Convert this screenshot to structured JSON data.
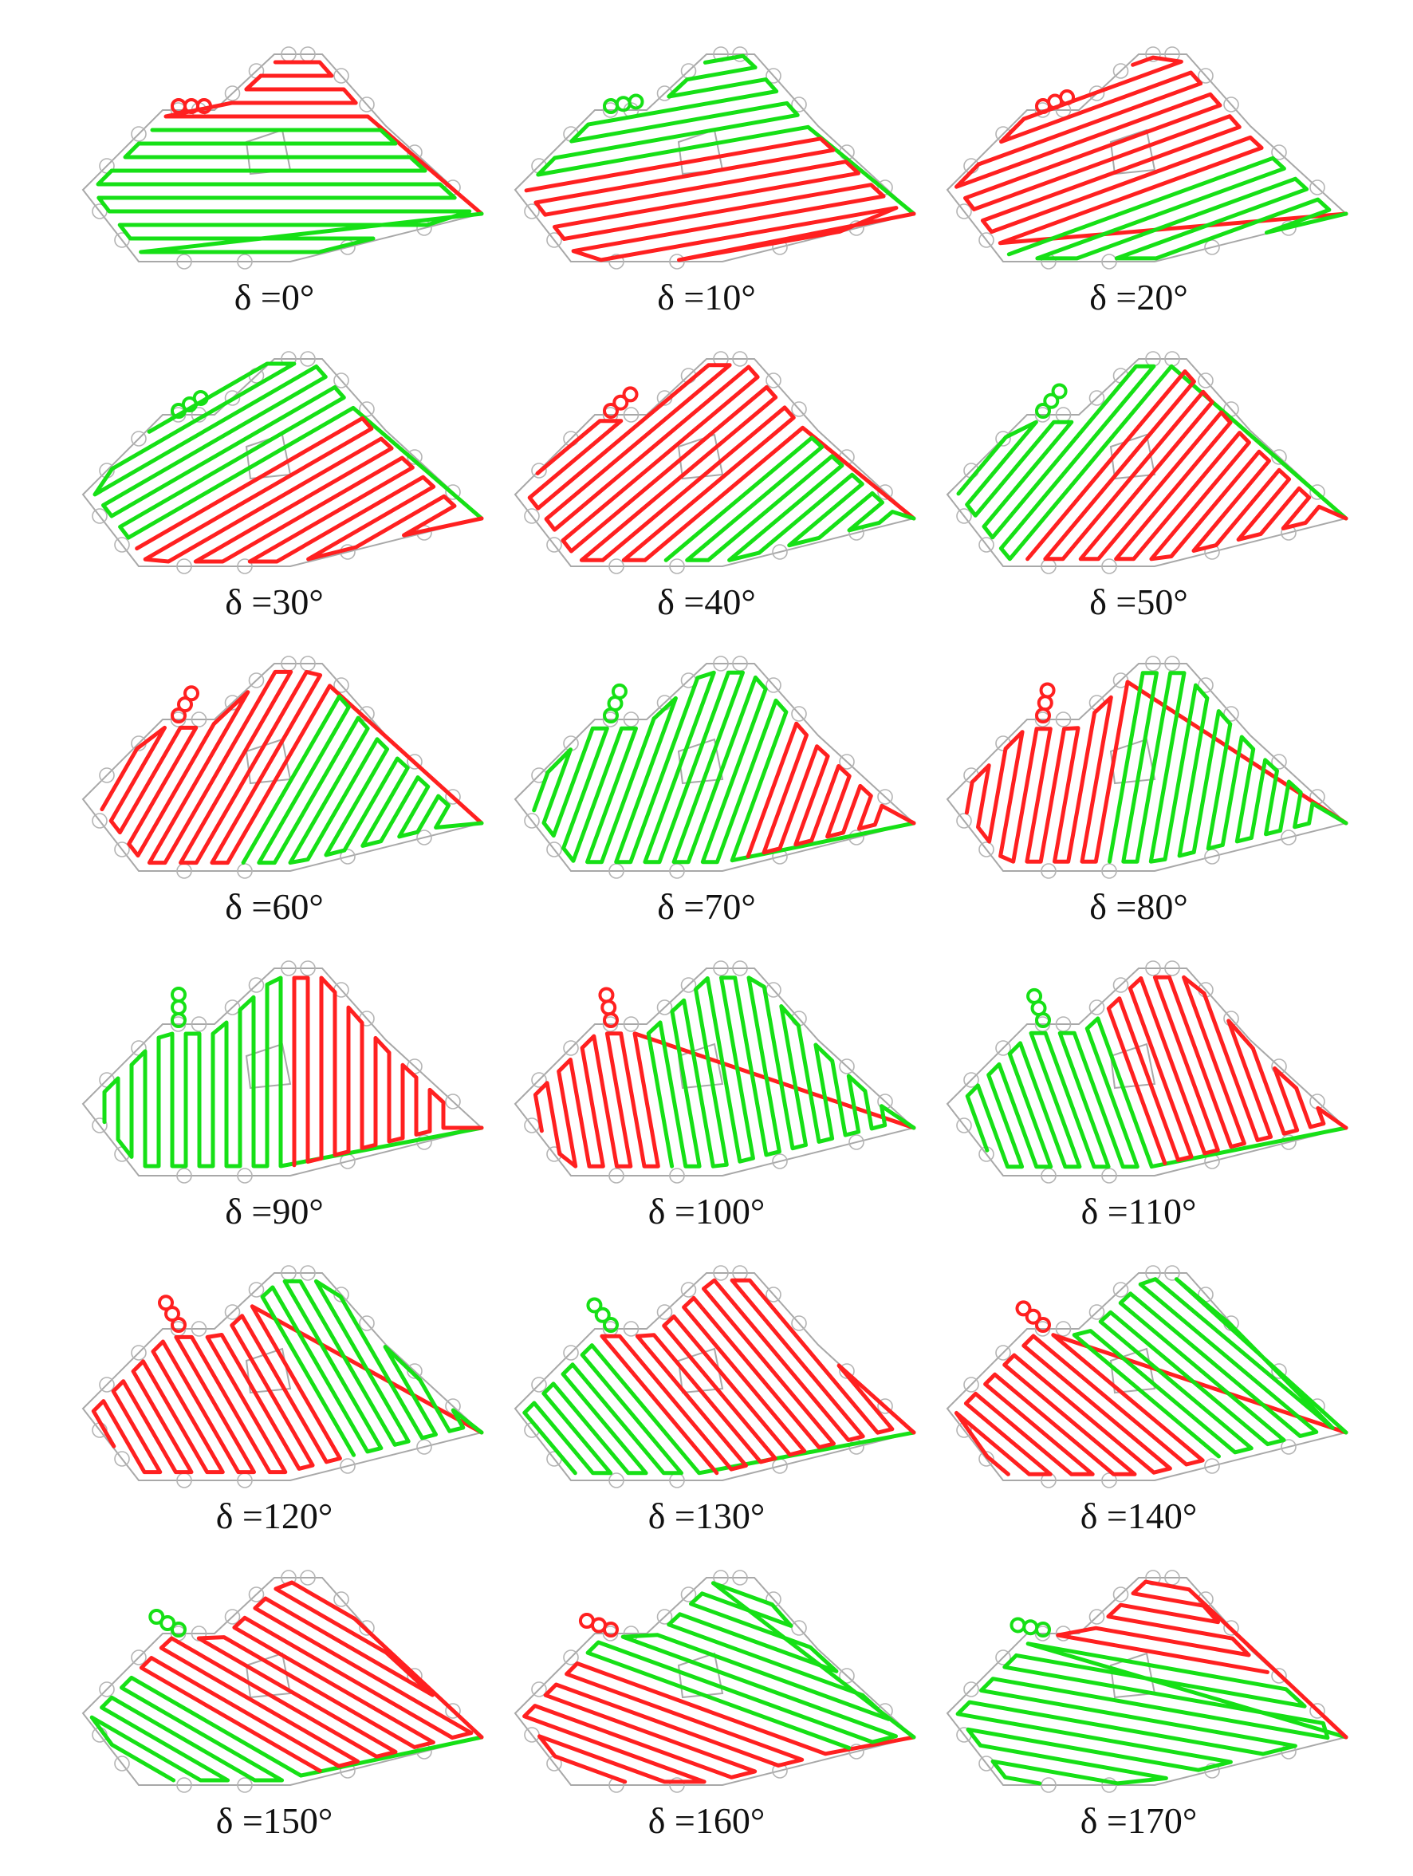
{
  "figure": {
    "colors": {
      "path_a": "#ff2020",
      "path_b": "#16e016",
      "obstacle": "#a8a8a8",
      "sensor": "#b4b4b4"
    },
    "panels": [
      {
        "label": "δ =0°"
      },
      {
        "label": "δ =10°"
      },
      {
        "label": "δ =20°"
      },
      {
        "label": "δ =30°"
      },
      {
        "label": "δ =40°"
      },
      {
        "label": "δ =50°"
      },
      {
        "label": "δ =60°"
      },
      {
        "label": "δ =70°"
      },
      {
        "label": "δ =80°"
      },
      {
        "label": "δ =90°"
      },
      {
        "label": "δ =100°"
      },
      {
        "label": "δ =110°"
      },
      {
        "label": "δ =120°"
      },
      {
        "label": "δ =130°"
      },
      {
        "label": "δ =140°"
      },
      {
        "label": "δ =150°"
      },
      {
        "label": "δ =160°"
      },
      {
        "label": "δ =170°"
      }
    ]
  }
}
